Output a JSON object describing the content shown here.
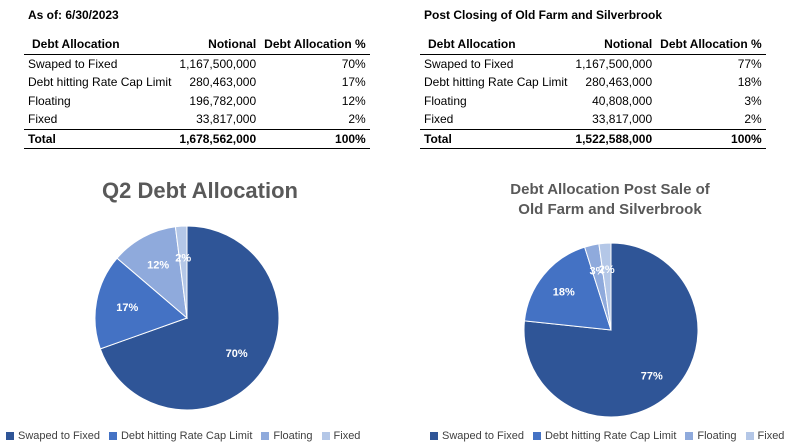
{
  "tables": [
    {
      "title": "As of: 6/30/2023",
      "headers": [
        "Debt Allocation",
        "Notional",
        "Debt Allocation %"
      ],
      "rows": [
        [
          "Swaped to Fixed",
          "1,167,500,000",
          "70%"
        ],
        [
          "Debt hitting Rate Cap Limit",
          "280,463,000",
          "17%"
        ],
        [
          "Floating",
          "196,782,000",
          "12%"
        ],
        [
          "Fixed",
          "33,817,000",
          "2%"
        ]
      ],
      "total": [
        "Total",
        "1,678,562,000",
        "100%"
      ]
    },
    {
      "title": "Post Closing of Old Farm and Silverbrook",
      "headers": [
        "Debt Allocation",
        "Notional",
        "Debt Allocation %"
      ],
      "rows": [
        [
          "Swaped to Fixed",
          "1,167,500,000",
          "77%"
        ],
        [
          "Debt hitting Rate Cap Limit",
          "280,463,000",
          "18%"
        ],
        [
          "Floating",
          "40,808,000",
          "3%"
        ],
        [
          "Fixed",
          "33,817,000",
          "2%"
        ]
      ],
      "total": [
        "Total",
        "1,522,588,000",
        "100%"
      ]
    }
  ],
  "colors": [
    "#2F5597",
    "#4472C4",
    "#8FAADC",
    "#B4C7E7"
  ],
  "chart_data": [
    {
      "type": "pie",
      "title": "Q2 Debt Allocation",
      "categories": [
        "Swaped to Fixed",
        "Debt hitting Rate Cap Limit",
        "Floating",
        "Fixed"
      ],
      "values": [
        1167500000,
        280463000,
        196782000,
        33817000
      ],
      "data_labels": [
        "70%",
        "17%",
        "12%",
        "2%"
      ],
      "legend": "bottom"
    },
    {
      "type": "pie",
      "title_lines": [
        "Debt Allocation Post Sale of",
        "Old Farm and Silverbrook"
      ],
      "categories": [
        "Swaped to Fixed",
        "Debt hitting Rate Cap Limit",
        "Floating",
        "Fixed"
      ],
      "values": [
        1167500000,
        280463000,
        40808000,
        33817000
      ],
      "data_labels": [
        "77%",
        "18%",
        "3%",
        "2%"
      ],
      "legend": "bottom"
    }
  ]
}
